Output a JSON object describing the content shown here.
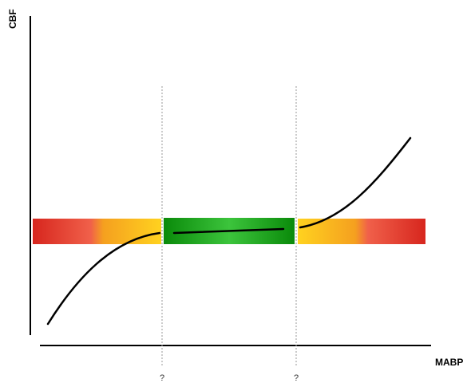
{
  "axes": {
    "y_label": "CBF",
    "x_label": "MABP"
  },
  "thresholds": {
    "lower_label": "?",
    "upper_label": "?"
  },
  "colors": {
    "red": "#d7261e",
    "orange": "#f58b1f",
    "yellow": "#ffd21f",
    "green_dark": "#0a8a0a",
    "green_light": "#3cc43c",
    "curve": "#000000",
    "axis": "#000000",
    "dotted_line": "#9a9a9a"
  },
  "icons": {
    "curve": "autoregulation-curve"
  }
}
